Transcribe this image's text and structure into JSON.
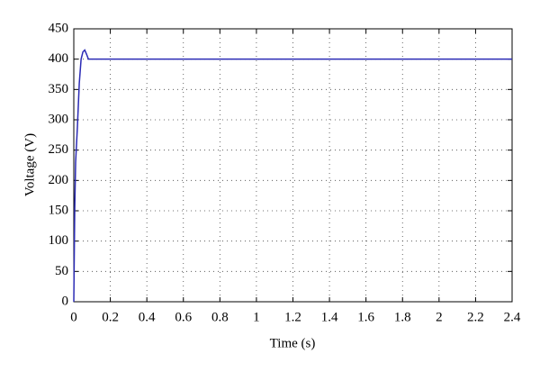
{
  "chart_data": {
    "type": "line",
    "xlabel": "Time (s)",
    "ylabel": "Voltage (V)",
    "x": [
      0,
      0.005,
      0.01,
      0.02,
      0.03,
      0.04,
      0.05,
      0.06,
      0.07,
      0.08,
      0.1,
      2.4
    ],
    "series": [
      {
        "color": "#2b2bb5",
        "values": [
          0,
          150,
          230,
          290,
          360,
          400,
          412,
          415,
          408,
          400,
          400,
          400
        ]
      }
    ],
    "xlim": [
      0,
      2.4
    ],
    "xticks": [
      0,
      0.2,
      0.4,
      0.6,
      0.8,
      1,
      1.2,
      1.4,
      1.6,
      1.8,
      2,
      2.2,
      2.4
    ],
    "ylim": [
      0,
      450
    ],
    "yticks": [
      0,
      50,
      100,
      150,
      200,
      250,
      300,
      350,
      400,
      450
    ],
    "grid": true
  }
}
